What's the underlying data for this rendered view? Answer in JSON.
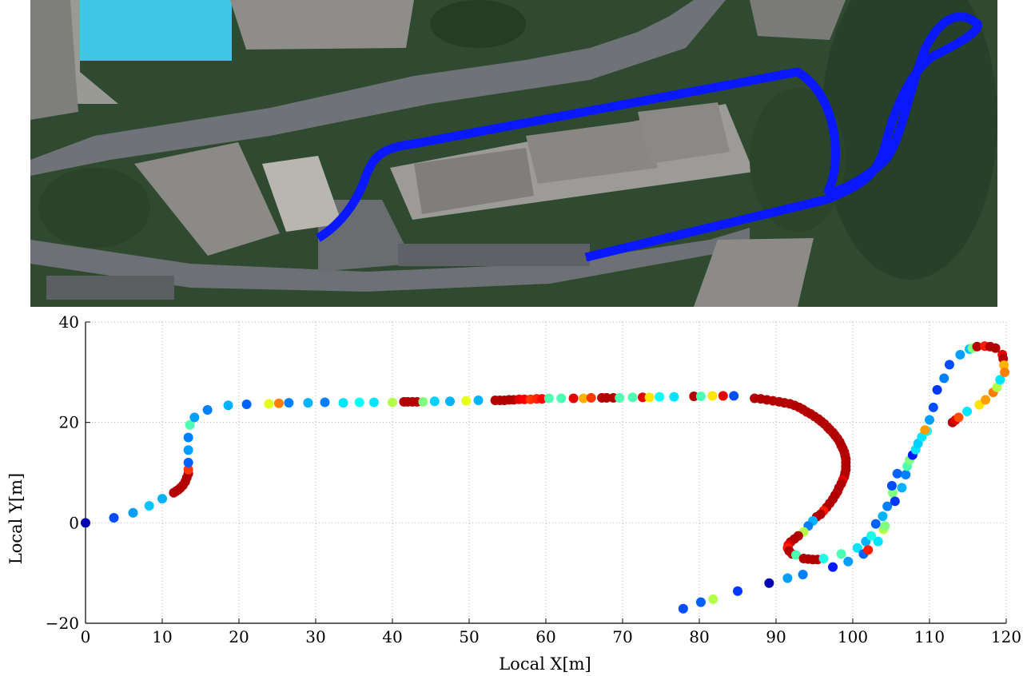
{
  "image": {
    "content": "aerial satellite view of campus buildings with the driven path overlaid",
    "colors": {
      "path": "#0a18ff",
      "trees": "#2b4a2c",
      "roof": "#8c8a86",
      "road": "#6f7276",
      "pool": "#3fc6e6"
    }
  },
  "chart_data": {
    "type": "scatter",
    "xlabel": "Local X[m]",
    "ylabel": "Local Y[m]",
    "xlim": [
      0,
      120
    ],
    "ylim": [
      -20,
      40
    ],
    "xticks": [
      0,
      10,
      20,
      30,
      40,
      50,
      60,
      70,
      80,
      90,
      100,
      110,
      120
    ],
    "yticks": [
      -20,
      0,
      20,
      40
    ],
    "grid": true,
    "colormap": "jet",
    "series": [
      {
        "points": [
          [
            0,
            0,
            0.05
          ],
          [
            3.7,
            1,
            0.2
          ],
          [
            6.2,
            2,
            0.28
          ],
          [
            8.3,
            3.4,
            0.32
          ],
          [
            10,
            4.8,
            0.3
          ],
          [
            11.5,
            6,
            0.95
          ],
          [
            11.8,
            6.3,
            0.95
          ],
          [
            12.1,
            6.6,
            0.95
          ],
          [
            12.4,
            7,
            0.95
          ],
          [
            12.7,
            7.5,
            0.95
          ],
          [
            13,
            8.2,
            0.95
          ],
          [
            13.2,
            9,
            0.95
          ],
          [
            13.4,
            9.8,
            0.95
          ],
          [
            13.4,
            10.6,
            0.82
          ],
          [
            13.4,
            12,
            0.22
          ],
          [
            13.4,
            14.5,
            0.28
          ],
          [
            13.4,
            17,
            0.25
          ],
          [
            13.6,
            19.5,
            0.45
          ],
          [
            14.2,
            21,
            0.28
          ],
          [
            15.9,
            22.5,
            0.25
          ],
          [
            18.6,
            23.4,
            0.3
          ],
          [
            21,
            23.6,
            0.22
          ],
          [
            23.9,
            23.7,
            0.6
          ],
          [
            25.2,
            23.8,
            0.75
          ],
          [
            26.5,
            23.9,
            0.25
          ],
          [
            29,
            23.9,
            0.3
          ],
          [
            31.2,
            24,
            0.25
          ],
          [
            33.6,
            23.9,
            0.35
          ],
          [
            35.7,
            24,
            0.38
          ],
          [
            37.6,
            24,
            0.35
          ],
          [
            40,
            24,
            0.55
          ],
          [
            41.5,
            24.1,
            0.95
          ],
          [
            42,
            24.1,
            0.95
          ],
          [
            42.6,
            24.1,
            0.95
          ],
          [
            43.2,
            24.1,
            0.95
          ],
          [
            44,
            24.1,
            0.5
          ],
          [
            45.5,
            24.2,
            0.33
          ],
          [
            47.5,
            24.2,
            0.3
          ],
          [
            49.6,
            24.3,
            0.6
          ],
          [
            51.2,
            24.4,
            0.3
          ],
          [
            53.4,
            24.4,
            0.95
          ],
          [
            54,
            24.4,
            0.95
          ],
          [
            54.6,
            24.4,
            0.95
          ],
          [
            55.2,
            24.5,
            0.95
          ],
          [
            55.8,
            24.5,
            0.95
          ],
          [
            56.5,
            24.6,
            0.9
          ],
          [
            57.2,
            24.6,
            0.88
          ],
          [
            58,
            24.6,
            0.82
          ],
          [
            58.8,
            24.7,
            0.84
          ],
          [
            59.5,
            24.7,
            0.87
          ],
          [
            60.4,
            24.8,
            0.45
          ],
          [
            62,
            24.8,
            0.45
          ],
          [
            63.6,
            24.8,
            0.9
          ],
          [
            64.9,
            24.8,
            0.7
          ],
          [
            65.9,
            24.9,
            0.82
          ],
          [
            67.3,
            24.9,
            0.95
          ],
          [
            67.9,
            24.9,
            0.95
          ],
          [
            68.8,
            24.9,
            0.95
          ],
          [
            69.6,
            24.9,
            0.45
          ],
          [
            71.3,
            25,
            0.45
          ],
          [
            72.6,
            25,
            0.9
          ],
          [
            73.5,
            25,
            0.65
          ],
          [
            74.8,
            25.1,
            0.38
          ],
          [
            76.7,
            25.1,
            0.35
          ],
          [
            79.3,
            25.2,
            0.95
          ],
          [
            80.2,
            25.2,
            0.45
          ],
          [
            81.7,
            25.3,
            0.65
          ],
          [
            83.1,
            25.3,
            0.9
          ],
          [
            84.5,
            25.3,
            0.2
          ],
          [
            87.2,
            24.8,
            0.95
          ],
          [
            88,
            24.7,
            0.95
          ],
          [
            88.8,
            24.5,
            0.95
          ],
          [
            89.6,
            24.3,
            0.95
          ],
          [
            90.4,
            24.1,
            0.95
          ],
          [
            91.1,
            23.9,
            0.95
          ],
          [
            91.8,
            23.7,
            0.95
          ],
          [
            92.4,
            23.4,
            0.95
          ],
          [
            93,
            23,
            0.95
          ],
          [
            93.5,
            22.6,
            0.95
          ],
          [
            94,
            22.1,
            0.95
          ],
          [
            94.5,
            21.7,
            0.95
          ],
          [
            95,
            21.2,
            0.95
          ],
          [
            95.5,
            20.7,
            0.95
          ],
          [
            95.9,
            20.2,
            0.95
          ],
          [
            96.3,
            19.7,
            0.95
          ],
          [
            96.7,
            19.1,
            0.95
          ],
          [
            97,
            18.6,
            0.95
          ],
          [
            97.4,
            18,
            0.95
          ],
          [
            97.7,
            17.4,
            0.95
          ],
          [
            98,
            16.8,
            0.95
          ],
          [
            98.3,
            16.1,
            0.95
          ],
          [
            98.5,
            15.4,
            0.95
          ],
          [
            98.7,
            14.8,
            0.95
          ],
          [
            98.9,
            14.1,
            0.95
          ],
          [
            99,
            13.4,
            0.95
          ],
          [
            99.1,
            12.7,
            0.95
          ],
          [
            99.1,
            12,
            0.95
          ],
          [
            99.1,
            11.3,
            0.95
          ],
          [
            99.1,
            10.6,
            0.95
          ],
          [
            99,
            9.9,
            0.95
          ],
          [
            98.9,
            9.2,
            0.95
          ],
          [
            98.7,
            8.5,
            0.9
          ],
          [
            98.5,
            7.8,
            0.95
          ],
          [
            98.2,
            7,
            0.95
          ],
          [
            98,
            6.2,
            0.95
          ],
          [
            97.7,
            5.5,
            0.95
          ],
          [
            97.4,
            4.7,
            0.95
          ],
          [
            97,
            3.9,
            0.95
          ],
          [
            96.6,
            3.1,
            0.95
          ],
          [
            96.2,
            2.4,
            0.85
          ],
          [
            95.8,
            1.7,
            0.95
          ],
          [
            95.3,
            1.2,
            0.95
          ],
          [
            94.8,
            0.4,
            0.3
          ],
          [
            94.2,
            -0.6,
            0.25
          ],
          [
            93.6,
            -1.8,
            0.55
          ],
          [
            92.9,
            -2.6,
            0.95
          ],
          [
            92.4,
            -3.2,
            0.95
          ],
          [
            91.9,
            -3.8,
            0.95
          ],
          [
            91.6,
            -4.4,
            0.9
          ],
          [
            91.5,
            -5,
            0.85
          ],
          [
            91.7,
            -5.6,
            0.95
          ],
          [
            92.1,
            -6.2,
            0.95
          ],
          [
            92.6,
            -6.4,
            0.45
          ],
          [
            93.6,
            -7.1,
            0.95
          ],
          [
            94.2,
            -7.2,
            0.95
          ],
          [
            94.8,
            -7.3,
            0.95
          ],
          [
            95.4,
            -7.3,
            0.95
          ],
          [
            96.2,
            -7.1,
            0.4
          ],
          [
            98.5,
            -6.2,
            0.45
          ],
          [
            99.4,
            -7.7,
            0.28
          ],
          [
            100.6,
            -5,
            0.35
          ],
          [
            101.4,
            -6.2,
            0.22
          ],
          [
            101.7,
            -3.7,
            0.3
          ],
          [
            102,
            -5.4,
            0.85
          ],
          [
            102.4,
            -2.6,
            0.4
          ],
          [
            103,
            -0.2,
            0.22
          ],
          [
            103.3,
            -3.7,
            0.35
          ],
          [
            103.9,
            1.3,
            0.3
          ],
          [
            104,
            -1.3,
            0.55
          ],
          [
            104.5,
            3.3,
            0.25
          ],
          [
            104.2,
            -0.6,
            0.5
          ],
          [
            105.2,
            6,
            0.5
          ],
          [
            105.5,
            4.3,
            0.18
          ],
          [
            105.1,
            7.4,
            0.2
          ],
          [
            105.8,
            9.8,
            0.22
          ],
          [
            106.4,
            7,
            0.3
          ],
          [
            106.9,
            9.6,
            0.25
          ],
          [
            107.1,
            11.3,
            0.45
          ],
          [
            107.4,
            12.5,
            0.5
          ],
          [
            107.8,
            13.5,
            0.15
          ],
          [
            108.2,
            14.6,
            0.35
          ],
          [
            108.5,
            15.8,
            0.33
          ],
          [
            109,
            17.1,
            0.35
          ],
          [
            109.7,
            18.3,
            0.38
          ],
          [
            110,
            20.5,
            0.28
          ],
          [
            110.5,
            23,
            0.2
          ],
          [
            111,
            26.5,
            0.18
          ],
          [
            111.9,
            28.8,
            0.25
          ],
          [
            112.6,
            31.5,
            0.2
          ],
          [
            113,
            20,
            0.95
          ],
          [
            113.4,
            20.5,
            0.9
          ],
          [
            113.8,
            21,
            0.8
          ],
          [
            114,
            33.5,
            0.28
          ],
          [
            114.9,
            22.2,
            0.35
          ],
          [
            115.2,
            34.6,
            0.32
          ],
          [
            115.6,
            34.8,
            0.5
          ],
          [
            116.2,
            35.1,
            0.95
          ],
          [
            116.5,
            23.5,
            0.65
          ],
          [
            117.2,
            35.2,
            0.85
          ],
          [
            117.3,
            24.5,
            0.72
          ],
          [
            117.9,
            35.1,
            0.95
          ],
          [
            118.3,
            26,
            0.75
          ],
          [
            118.6,
            34.8,
            0.95
          ],
          [
            118.8,
            27,
            0.55
          ],
          [
            119.2,
            28.5,
            0.35
          ],
          [
            119.5,
            33.5,
            0.9
          ],
          [
            119.6,
            32.7,
            0.95
          ],
          [
            119.7,
            31.4,
            0.7
          ],
          [
            119.8,
            30,
            0.75
          ],
          [
            109.4,
            18.5,
            0.72
          ],
          [
            89.1,
            -12,
            0.05
          ],
          [
            91.5,
            -11,
            0.28
          ],
          [
            93.5,
            -10.3,
            0.25
          ],
          [
            97.4,
            -8.8,
            0.15
          ],
          [
            85,
            -13.6,
            0.18
          ],
          [
            81.8,
            -15.2,
            0.55
          ],
          [
            80.2,
            -15.8,
            0.22
          ],
          [
            77.9,
            -17.1,
            0.2
          ]
        ]
      }
    ]
  }
}
